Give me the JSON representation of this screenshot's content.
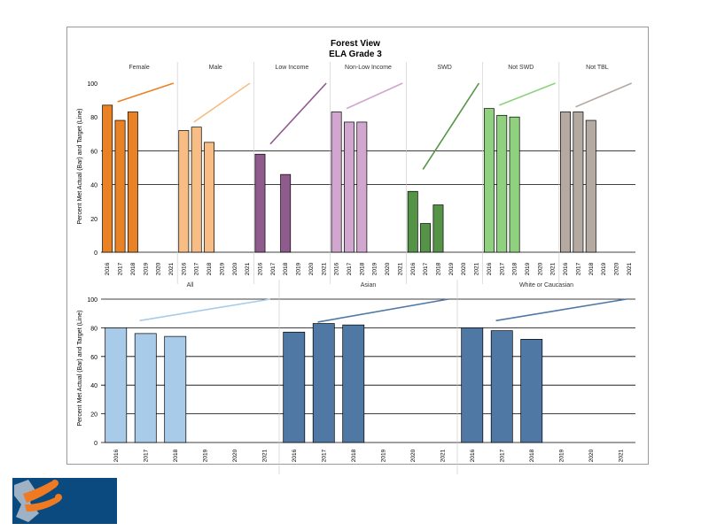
{
  "title": "Forest View",
  "subtitle": "ELA Grade 3",
  "ylabel": "Percent Met Actual (Bar) and Target (Line)",
  "logo": {
    "name": "district-logo"
  },
  "chart_data": [
    {
      "type": "bar",
      "title": "Forest View",
      "subtitle": "ELA Grade 3",
      "ylabel": "Percent Met Actual (Bar) and Target (Line)",
      "ylim": [
        0,
        100
      ],
      "yticks": [
        "0",
        "20",
        "40",
        "60",
        "80",
        "100"
      ],
      "grid": true,
      "categories": [
        "2016",
        "2017",
        "2018",
        "2019",
        "2020",
        "2021"
      ],
      "series": [
        {
          "name": "Female",
          "color": "#e98225",
          "values": [
            87,
            78,
            83,
            null,
            null,
            null
          ],
          "target": [
            89,
            100
          ]
        },
        {
          "name": "Male",
          "color": "#f7bd84",
          "values": [
            72,
            74,
            65,
            null,
            null,
            null
          ],
          "target": [
            77,
            100
          ]
        },
        {
          "name": "Low Income",
          "color": "#8e5b8c",
          "values": [
            58,
            null,
            46,
            null,
            null,
            null
          ],
          "target": [
            64,
            100
          ]
        },
        {
          "name": "Non-Low Income",
          "color": "#d1a6cf",
          "values": [
            83,
            77,
            77,
            null,
            null,
            null
          ],
          "target": [
            85,
            100
          ]
        },
        {
          "name": "SWD",
          "color": "#559447",
          "values": [
            36,
            17,
            28,
            null,
            null,
            null
          ],
          "target": [
            49,
            100
          ]
        },
        {
          "name": "Not SWD",
          "color": "#8fd17f",
          "values": [
            85,
            81,
            80,
            null,
            null,
            null
          ],
          "target": [
            87,
            100
          ]
        },
        {
          "name": "Not TBL",
          "color": "#b4aaa2",
          "values": [
            83,
            83,
            78,
            null,
            null,
            null
          ],
          "target": [
            86,
            100
          ]
        }
      ]
    },
    {
      "type": "bar",
      "ylabel": "Percent Met Actual (Bar) and Target (Line)",
      "ylim": [
        0,
        100
      ],
      "yticks": [
        "0",
        "20",
        "40",
        "60",
        "80",
        "100"
      ],
      "grid": true,
      "categories": [
        "2016",
        "2017",
        "2018",
        "2019",
        "2020",
        "2021"
      ],
      "series": [
        {
          "name": "All",
          "color": "#a8cbe9",
          "values": [
            80,
            76,
            74,
            null,
            null,
            null
          ],
          "target": [
            85,
            100
          ]
        },
        {
          "name": "Asian",
          "color": "#4f78a5",
          "values": [
            77,
            83,
            82,
            null,
            null,
            null
          ],
          "target": [
            84,
            100
          ]
        },
        {
          "name": "White or Caucasian",
          "color": "#4f78a5",
          "values": [
            80,
            78,
            72,
            null,
            null,
            null
          ],
          "target": [
            85,
            100
          ]
        }
      ]
    }
  ]
}
